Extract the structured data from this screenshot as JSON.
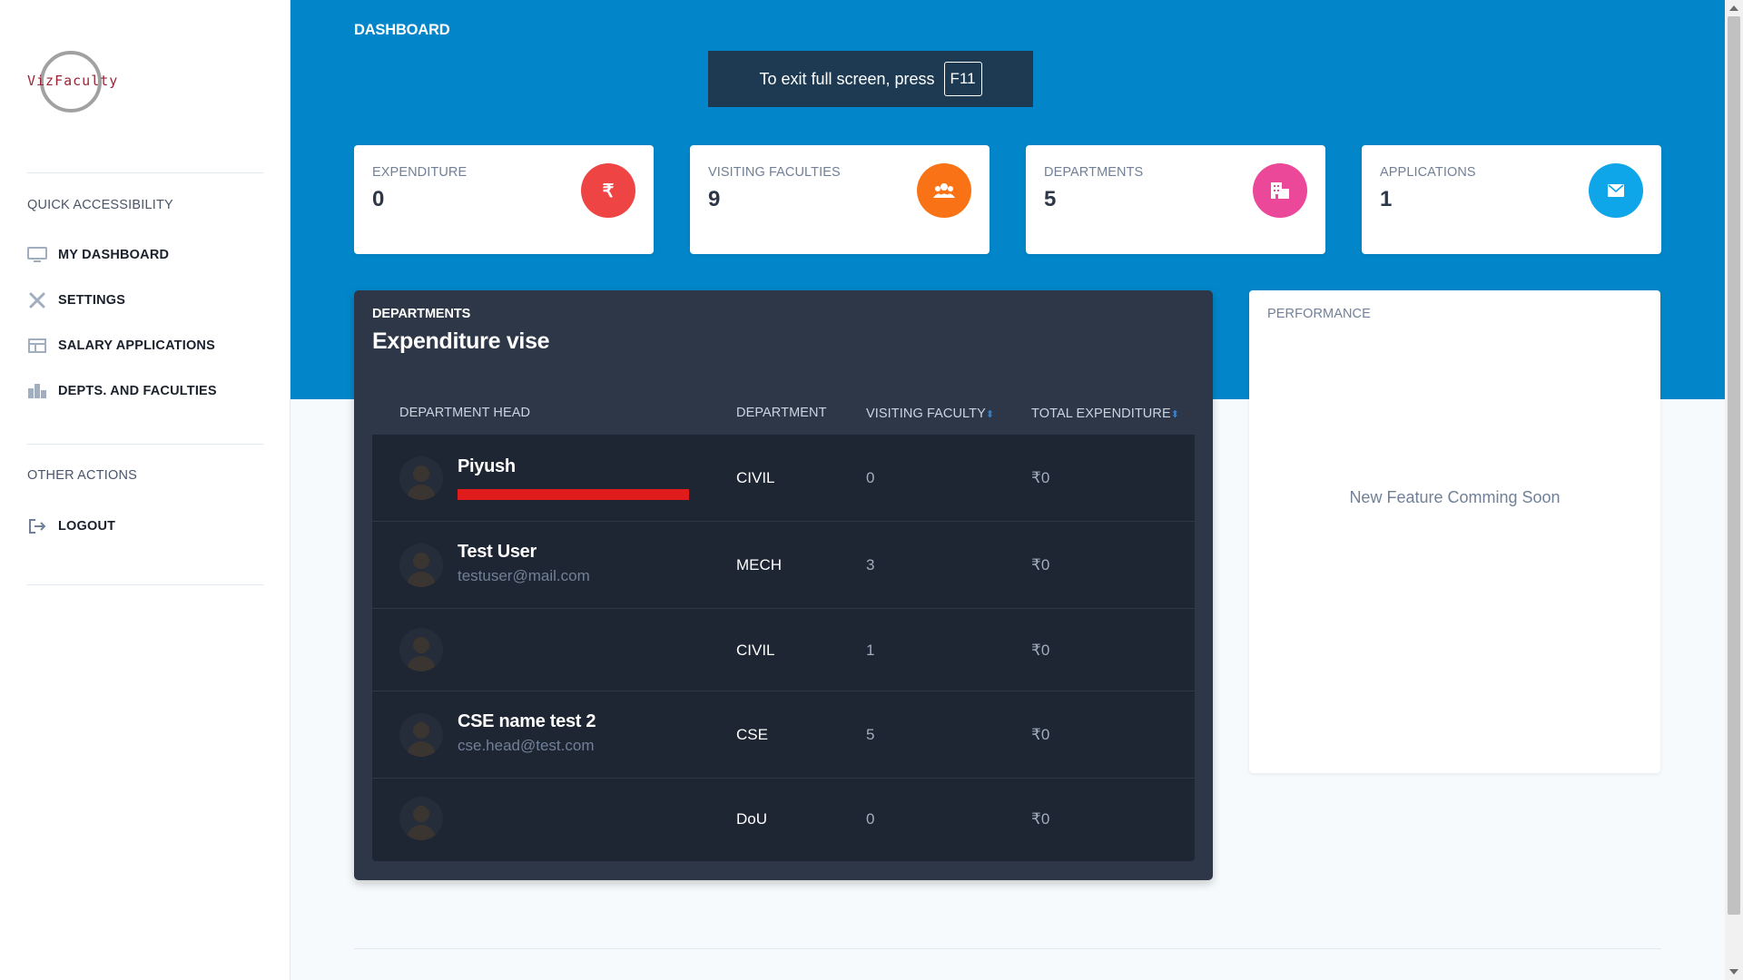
{
  "sidebar": {
    "logo_text": "VizFaculty",
    "quick_heading": "QUICK ACCESSIBILITY",
    "items": [
      {
        "label": "MY DASHBOARD",
        "icon": "monitor-icon"
      },
      {
        "label": "SETTINGS",
        "icon": "tools-icon"
      },
      {
        "label": "SALARY APPLICATIONS",
        "icon": "table-icon"
      },
      {
        "label": "DEPTS. AND FACULTIES",
        "icon": "building-icon"
      }
    ],
    "other_heading": "OTHER ACTIONS",
    "logout_label": "LOGOUT"
  },
  "header": {
    "title": "DASHBOARD"
  },
  "fullscreen_toast": {
    "text": "To exit full screen, press",
    "key": "F11"
  },
  "stats": [
    {
      "label": "EXPENDITURE",
      "value": "0",
      "icon": "rupee-icon",
      "icon_glyph": "₹",
      "color": "#ef4444"
    },
    {
      "label": "VISITING FACULTIES",
      "value": "9",
      "icon": "users-icon",
      "icon_glyph": "",
      "color": "#f97316"
    },
    {
      "label": "DEPARTMENTS",
      "value": "5",
      "icon": "building-icon",
      "icon_glyph": "",
      "color": "#ec4899"
    },
    {
      "label": "APPLICATIONS",
      "value": "1",
      "icon": "envelope-icon",
      "icon_glyph": "",
      "color": "#0ea5e9"
    }
  ],
  "departments_card": {
    "subtitle": "DEPARTMENTS",
    "title": "Expenditure vise",
    "columns": [
      "DEPARTMENT HEAD",
      "DEPARTMENT",
      "VISITING FACULTY",
      "TOTAL EXPENDITURE"
    ],
    "rows": [
      {
        "name": "Piyush",
        "email": "",
        "department": "CIVIL",
        "visiting_faculty": "0",
        "total_expenditure": "₹0",
        "redacted": true
      },
      {
        "name": "Test User",
        "email": "testuser@mail.com",
        "department": "MECH",
        "visiting_faculty": "3",
        "total_expenditure": "₹0"
      },
      {
        "name": "",
        "email": "",
        "department": "CIVIL",
        "visiting_faculty": "1",
        "total_expenditure": "₹0"
      },
      {
        "name": "CSE name test 2",
        "email": "cse.head@test.com",
        "department": "CSE",
        "visiting_faculty": "5",
        "total_expenditure": "₹0"
      },
      {
        "name": "",
        "email": "",
        "department": "DoU",
        "visiting_faculty": "0",
        "total_expenditure": "₹0"
      }
    ]
  },
  "performance_card": {
    "title": "PERFORMANCE",
    "message": "New Feature Comming Soon"
  }
}
